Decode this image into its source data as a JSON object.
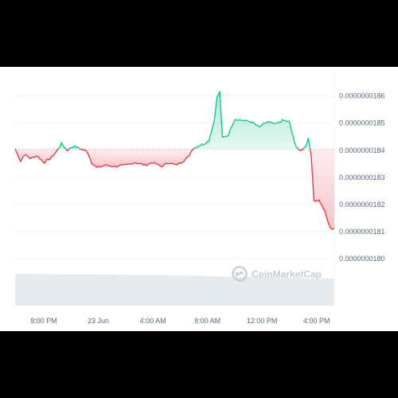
{
  "chart_data": {
    "type": "line",
    "watermark": "CoinMarketCap",
    "y_ticks": [
      "0.0000000186",
      "0.0000000185",
      "0.0000000184",
      "0.0000000183",
      "0.0000000182",
      "0.0000000181",
      "0.0000000180"
    ],
    "y_tick_values": [
      1.86e-08,
      1.85e-08,
      1.84e-08,
      1.83e-08,
      1.82e-08,
      1.81e-08,
      1.8e-08
    ],
    "x_ticks": [
      "8:00 PM",
      "23 Jun",
      "4:00 AM",
      "8:00 AM",
      "12:00 PM",
      "4:00 PM"
    ],
    "x_tick_hours": [
      20,
      24,
      28,
      32,
      36,
      40
    ],
    "baseline": 1.8405e-08,
    "ylim": [
      1.795e-08,
      1.869e-08
    ],
    "xlim_hours": [
      17.9,
      41.3
    ],
    "series_points": [
      [
        17.9,
        1.8405e-08
      ],
      [
        18.3,
        1.836e-08
      ],
      [
        18.6,
        1.8385e-08
      ],
      [
        19.0,
        1.837e-08
      ],
      [
        19.5,
        1.838e-08
      ],
      [
        20.0,
        1.8355e-08
      ],
      [
        20.5,
        1.837e-08
      ],
      [
        21.0,
        1.84e-08
      ],
      [
        21.3,
        1.8425e-08
      ],
      [
        21.7,
        1.84e-08
      ],
      [
        22.2,
        1.8415e-08
      ],
      [
        22.7,
        1.8405e-08
      ],
      [
        23.2,
        1.8395e-08
      ],
      [
        23.5,
        1.8355e-08
      ],
      [
        23.9,
        1.8335e-08
      ],
      [
        24.5,
        1.8345e-08
      ],
      [
        25.2,
        1.834e-08
      ],
      [
        26.0,
        1.8345e-08
      ],
      [
        26.7,
        1.8355e-08
      ],
      [
        27.4,
        1.8345e-08
      ],
      [
        28.0,
        1.8355e-08
      ],
      [
        28.6,
        1.834e-08
      ],
      [
        29.2,
        1.8355e-08
      ],
      [
        29.7,
        1.8345e-08
      ],
      [
        30.2,
        1.836e-08
      ],
      [
        30.6,
        1.8375e-08
      ],
      [
        30.9,
        1.8405e-08
      ],
      [
        31.3,
        1.8415e-08
      ],
      [
        31.8,
        1.8425e-08
      ],
      [
        32.1,
        1.8435e-08
      ],
      [
        32.5,
        1.851e-08
      ],
      [
        32.7,
        1.8595e-08
      ],
      [
        32.9,
        1.8615e-08
      ],
      [
        33.1,
        1.8445e-08
      ],
      [
        33.5,
        1.8455e-08
      ],
      [
        34.0,
        1.8515e-08
      ],
      [
        34.6,
        1.851e-08
      ],
      [
        35.2,
        1.8505e-08
      ],
      [
        35.8,
        1.8485e-08
      ],
      [
        36.4,
        1.8505e-08
      ],
      [
        37.0,
        1.8495e-08
      ],
      [
        37.5,
        1.851e-08
      ],
      [
        38.0,
        1.8505e-08
      ],
      [
        38.4,
        1.8425e-08
      ],
      [
        38.8,
        1.8395e-08
      ],
      [
        39.2,
        1.8415e-08
      ],
      [
        39.4,
        1.8445e-08
      ],
      [
        39.6,
        1.8385e-08
      ],
      [
        39.8,
        1.8215e-08
      ],
      [
        40.2,
        1.8215e-08
      ],
      [
        40.6,
        1.8175e-08
      ],
      [
        40.9,
        1.8125e-08
      ],
      [
        41.1,
        1.811e-08
      ],
      [
        41.3,
        1.811e-08
      ]
    ],
    "volume": [
      1.0,
      0.98,
      0.95,
      0.9,
      0.85
    ],
    "colors": {
      "up": "#16c784",
      "down": "#ea3943",
      "grid": "#eff2f5",
      "baseline": "#c3c8d1",
      "volume": "#e6e9ee",
      "tick": "#58667e",
      "watermark": "#c4cad4"
    },
    "grid": true
  }
}
